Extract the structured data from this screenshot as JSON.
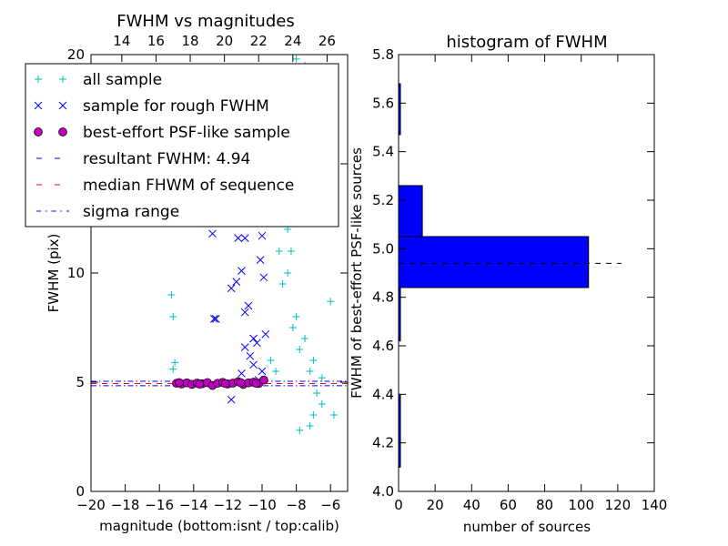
{
  "chart_data": [
    {
      "type": "scatter",
      "title": "FWHM vs magnitudes",
      "xlabel": "magnitude (bottom:isnt / top:calib)",
      "ylabel": "FWHM (pix)",
      "xlim": [
        -20,
        -5
      ],
      "ylim": [
        0,
        20
      ],
      "x_ticks": [
        -20,
        -18,
        -16,
        -14,
        -12,
        -10,
        -8,
        -6
      ],
      "x_tick_labels": [
        "−20",
        "−18",
        "−16",
        "−14",
        "−12",
        "−10",
        "−8",
        "−6"
      ],
      "y_ticks": [
        0,
        5,
        10,
        15,
        20
      ],
      "y_tick_labels": [
        "0",
        "5",
        "10",
        "15",
        "20"
      ],
      "top_axis": {
        "label": "",
        "ticks": [
          14,
          16,
          18,
          20,
          22,
          24,
          26
        ],
        "tick_labels": [
          "14",
          "16",
          "18",
          "20",
          "22",
          "24",
          "26"
        ],
        "offset": 32.2,
        "xlim": [
          12.2,
          27.2
        ]
      },
      "legend": {
        "placement": "top-left",
        "entries": [
          {
            "label": "all sample",
            "marker": "plus",
            "color": "#00bfbf"
          },
          {
            "label": "sample for rough FWHM",
            "marker": "x",
            "color": "#0000ff"
          },
          {
            "label": "best-effort PSF-like sample",
            "marker": "circle",
            "color": "#bf00bf"
          },
          {
            "label": "resultant FWHM: 4.94",
            "marker": "dash",
            "color": "#0000ff"
          },
          {
            "label": "median FHWM of sequence",
            "marker": "dash",
            "color": "#ff0000"
          },
          {
            "label": "sigma range",
            "marker": "dashdot",
            "color": "#0000ff"
          }
        ]
      },
      "series": [
        {
          "name": "all sample",
          "marker": "plus",
          "color": "#00bfbf",
          "points": [
            [
              -15.3,
              9.0
            ],
            [
              -15.2,
              8.0
            ],
            [
              -15.1,
              5.9
            ],
            [
              -15.2,
              5.6
            ],
            [
              -9.8,
              15.5
            ],
            [
              -9.5,
              18.0
            ],
            [
              -9.0,
              12.5
            ],
            [
              -8.5,
              10.0
            ],
            [
              -8.0,
              8.0
            ],
            [
              -7.5,
              7.0
            ],
            [
              -7.0,
              6.0
            ],
            [
              -6.5,
              5.2
            ],
            [
              -6.0,
              8.7
            ],
            [
              -8.0,
              19.8
            ],
            [
              -7.5,
              19.5
            ],
            [
              -9.0,
              11.0
            ],
            [
              -8.8,
              9.5
            ],
            [
              -8.2,
              7.5
            ],
            [
              -7.8,
              6.5
            ],
            [
              -7.2,
              5.5
            ],
            [
              -6.8,
              4.5
            ],
            [
              -6.5,
              4.0
            ],
            [
              -7.2,
              3.0
            ],
            [
              -7.8,
              2.8
            ],
            [
              -7.0,
              3.5
            ],
            [
              -5.8,
              3.5
            ],
            [
              -9.5,
              6.0
            ],
            [
              -9.2,
              5.5
            ],
            [
              -8.5,
              12.0
            ],
            [
              -8.3,
              11.0
            ]
          ]
        },
        {
          "name": "sample for rough FWHM",
          "marker": "x",
          "color": "#0000ff",
          "points": [
            [
              -12.9,
              11.8
            ],
            [
              -12.8,
              7.9
            ],
            [
              -12.7,
              7.9
            ],
            [
              -11.4,
              11.6
            ],
            [
              -11.0,
              11.6
            ],
            [
              -10.0,
              11.7
            ],
            [
              -11.8,
              9.3
            ],
            [
              -11.5,
              9.6
            ],
            [
              -11.2,
              10.1
            ],
            [
              -11.0,
              8.2
            ],
            [
              -10.8,
              8.5
            ],
            [
              -10.5,
              7.0
            ],
            [
              -11.0,
              6.6
            ],
            [
              -10.7,
              6.2
            ],
            [
              -11.2,
              5.4
            ],
            [
              -11.8,
              4.2
            ],
            [
              -10.2,
              5.1
            ],
            [
              -10.0,
              5.5
            ],
            [
              -10.5,
              5.8
            ],
            [
              -9.9,
              9.8
            ],
            [
              -10.1,
              10.6
            ],
            [
              -10.3,
              6.8
            ],
            [
              -9.8,
              7.2
            ]
          ]
        },
        {
          "name": "best-effort PSF-like sample",
          "marker": "circle",
          "color": "#bf00bf",
          "points": [
            [
              -15.0,
              4.95
            ],
            [
              -14.7,
              4.92
            ],
            [
              -14.4,
              4.97
            ],
            [
              -14.1,
              4.9
            ],
            [
              -13.8,
              4.96
            ],
            [
              -13.5,
              4.93
            ],
            [
              -13.2,
              4.98
            ],
            [
              -12.9,
              4.85
            ],
            [
              -12.6,
              4.95
            ],
            [
              -12.3,
              4.99
            ],
            [
              -12.0,
              4.92
            ],
            [
              -11.7,
              4.96
            ],
            [
              -11.4,
              5.02
            ],
            [
              -11.1,
              4.9
            ],
            [
              -10.8,
              4.97
            ],
            [
              -10.5,
              5.0
            ],
            [
              -10.2,
              4.94
            ],
            [
              -9.9,
              5.1
            ],
            [
              -14.85,
              4.98
            ],
            [
              -13.65,
              4.91
            ],
            [
              -12.15,
              4.94
            ],
            [
              -11.25,
              4.98
            ],
            [
              -10.35,
              4.95
            ]
          ]
        }
      ],
      "hlines": [
        {
          "name": "resultant FWHM: 4.94",
          "y": 4.94,
          "style": "dashed",
          "color": "#0000ff"
        },
        {
          "name": "median FHWM of sequence",
          "y": 4.94,
          "style": "dashed",
          "color": "#ff0000"
        },
        {
          "name": "sigma range upper",
          "y": 5.04,
          "style": "dashdot",
          "color": "#0000ff"
        },
        {
          "name": "sigma range lower",
          "y": 4.84,
          "style": "dashdot",
          "color": "#0000ff"
        }
      ]
    },
    {
      "type": "bar",
      "orientation": "horizontal",
      "title": "histogram of FWHM",
      "xlabel": "number of sources",
      "ylabel": "FWHM of best-effort PSF-like sources",
      "xlim": [
        0,
        140
      ],
      "ylim": [
        4.0,
        5.8
      ],
      "x_ticks": [
        0,
        20,
        40,
        60,
        80,
        100,
        120,
        140
      ],
      "x_tick_labels": [
        "0",
        "20",
        "40",
        "60",
        "80",
        "100",
        "120",
        "140"
      ],
      "y_ticks": [
        4.0,
        4.2,
        4.4,
        4.6,
        4.8,
        5.0,
        5.2,
        5.4,
        5.6,
        5.8
      ],
      "y_tick_labels": [
        "4.0",
        "4.2",
        "4.4",
        "4.6",
        "4.8",
        "5.0",
        "5.2",
        "5.4",
        "5.6",
        "5.8"
      ],
      "color": "#0000ff",
      "bins": [
        {
          "from": 4.1,
          "to": 4.2,
          "count": 1
        },
        {
          "from": 4.2,
          "to": 4.4,
          "count": 1
        },
        {
          "from": 4.62,
          "to": 4.84,
          "count": 1
        },
        {
          "from": 4.84,
          "to": 5.05,
          "count": 104
        },
        {
          "from": 5.05,
          "to": 5.26,
          "count": 13
        },
        {
          "from": 5.47,
          "to": 5.68,
          "count": 1
        }
      ],
      "hlines": [
        {
          "name": "resultant FWHM",
          "y": 4.94,
          "x_range": [
            0,
            122
          ],
          "style": "dashed",
          "color": "#000000"
        }
      ]
    }
  ]
}
